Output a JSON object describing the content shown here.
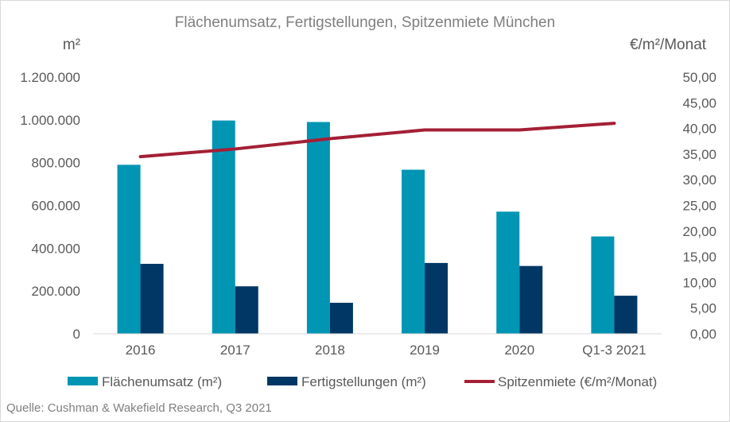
{
  "chart_data": {
    "type": "bar",
    "title": "Flächenumsatz, Fertigstellungen, Spitzenmiete München",
    "y_left_label": "m²",
    "y_right_label": "€/m²/Monat",
    "categories": [
      "2016",
      "2017",
      "2018",
      "2019",
      "2020",
      "Q1-3 2021"
    ],
    "series": [
      {
        "name": "Flächenumsatz (m²)",
        "type": "bar",
        "axis": "left",
        "color": "#0095b3",
        "values": [
          790000,
          997000,
          990000,
          767000,
          571000,
          455000
        ]
      },
      {
        "name": "Fertigstellungen (m²)",
        "type": "bar",
        "axis": "left",
        "color": "#003764",
        "values": [
          327000,
          222000,
          145000,
          331000,
          317000,
          178000
        ]
      },
      {
        "name": "Spitzenmiete (€/m²/Monat)",
        "type": "line",
        "axis": "right",
        "color": "#a41f35",
        "values": [
          34.5,
          36.0,
          38.0,
          39.7,
          39.7,
          41.0
        ]
      }
    ],
    "y_left": {
      "min": 0,
      "max": 1200000,
      "step": 200000,
      "tick_labels": [
        "0",
        "200.000",
        "400.000",
        "600.000",
        "800.000",
        "1.000.000",
        "1.200.000"
      ]
    },
    "y_right": {
      "min": 0,
      "max": 50,
      "step": 5,
      "tick_labels": [
        "0,00",
        "5,00",
        "10,00",
        "15,00",
        "20,00",
        "25,00",
        "30,00",
        "35,00",
        "40,00",
        "45,00",
        "50,00"
      ]
    },
    "grid": false,
    "legend_position": "bottom"
  },
  "source": "Quelle: Cushman & Wakefield Research, Q3 2021"
}
